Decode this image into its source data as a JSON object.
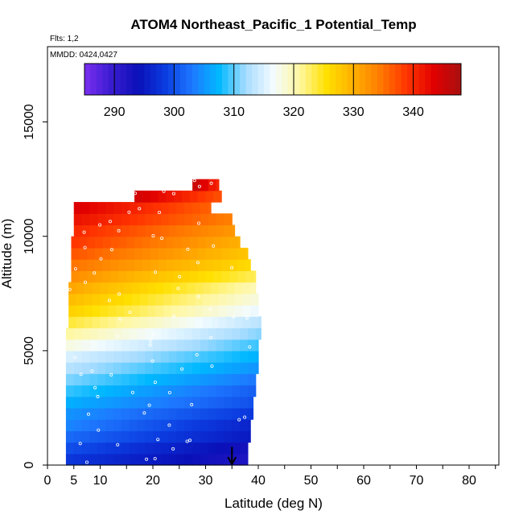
{
  "chart_data": {
    "type": "heatmap",
    "title": "ATOM4 Northeast_Pacific_1 Potential_Temp",
    "flights_label": "Flts: 1,2",
    "dates_label": "MMDD: 0424,0427",
    "xlabel": "Latitude (deg N)",
    "ylabel": "Altitude (m)",
    "xlim": [
      0,
      85
    ],
    "ylim": [
      0,
      18000
    ],
    "x_ticks": [
      0,
      5,
      10,
      20,
      30,
      40,
      50,
      60,
      70,
      80
    ],
    "y_ticks": [
      0,
      5000,
      10000,
      15000
    ],
    "colorbar": {
      "range": [
        285,
        348
      ],
      "ticks": [
        290,
        300,
        310,
        320,
        330,
        340
      ],
      "position": "top-inside",
      "colors": [
        "#7a2ff0",
        "#3a1cd0",
        "#0a10b8",
        "#0b3ce0",
        "#1e78ff",
        "#00b8ff",
        "#a8dcff",
        "#f2fbff",
        "#fff7a0",
        "#ffe000",
        "#ffb000",
        "#ff7a00",
        "#ff3300",
        "#e00000",
        "#a81010"
      ]
    },
    "colorscale_description": "potential temperature (K) by latitude and altitude bins",
    "bands": [
      {
        "alt": [
          0,
          500
        ],
        "x": [
          3.5,
          38.0
        ],
        "t": [
          298,
          292
        ]
      },
      {
        "alt": [
          500,
          1000
        ],
        "x": [
          3.5,
          38.0
        ],
        "t": [
          300,
          293
        ]
      },
      {
        "alt": [
          1000,
          1500
        ],
        "x": [
          3.5,
          38.5
        ],
        "t": [
          302,
          295
        ]
      },
      {
        "alt": [
          1500,
          2000
        ],
        "x": [
          3.5,
          38.5
        ],
        "t": [
          304,
          296
        ]
      },
      {
        "alt": [
          2000,
          2500
        ],
        "x": [
          3.5,
          39.0
        ],
        "t": [
          305,
          298
        ]
      },
      {
        "alt": [
          2500,
          3000
        ],
        "x": [
          3.5,
          39.0
        ],
        "t": [
          307,
          300
        ]
      },
      {
        "alt": [
          3000,
          3500
        ],
        "x": [
          3.5,
          39.5
        ],
        "t": [
          309,
          301
        ]
      },
      {
        "alt": [
          3500,
          4000
        ],
        "x": [
          3.5,
          39.5
        ],
        "t": [
          311,
          303
        ]
      },
      {
        "alt": [
          4000,
          4500
        ],
        "x": [
          3.5,
          40.0
        ],
        "t": [
          313,
          305
        ]
      },
      {
        "alt": [
          4500,
          5000
        ],
        "x": [
          3.5,
          40.0
        ],
        "t": [
          315,
          307
        ]
      },
      {
        "alt": [
          5000,
          5500
        ],
        "x": [
          3.5,
          40.0
        ],
        "t": [
          318,
          309
        ]
      },
      {
        "alt": [
          5500,
          6000
        ],
        "x": [
          3.5,
          40.5
        ],
        "t": [
          321,
          311
        ]
      },
      {
        "alt": [
          6000,
          6500
        ],
        "x": [
          4.0,
          40.5
        ],
        "t": [
          324,
          313
        ]
      },
      {
        "alt": [
          6500,
          7000
        ],
        "x": [
          4.0,
          40.0
        ],
        "t": [
          327,
          316
        ]
      },
      {
        "alt": [
          7000,
          7500
        ],
        "x": [
          4.0,
          40.0
        ],
        "t": [
          329,
          318
        ]
      },
      {
        "alt": [
          7500,
          8000
        ],
        "x": [
          4.0,
          39.5
        ],
        "t": [
          331,
          320
        ]
      },
      {
        "alt": [
          8000,
          8500
        ],
        "x": [
          4.5,
          39.5
        ],
        "t": [
          333,
          323
        ]
      },
      {
        "alt": [
          8500,
          9000
        ],
        "x": [
          4.5,
          38.5
        ],
        "t": [
          335,
          326
        ]
      },
      {
        "alt": [
          9000,
          9500
        ],
        "x": [
          4.5,
          38.0
        ],
        "t": [
          337,
          328
        ]
      },
      {
        "alt": [
          9500,
          10000
        ],
        "x": [
          4.5,
          36.5
        ],
        "t": [
          339,
          330
        ]
      },
      {
        "alt": [
          10000,
          10500
        ],
        "x": [
          5.0,
          35.5
        ],
        "t": [
          340,
          332
        ]
      },
      {
        "alt": [
          10500,
          11000
        ],
        "x": [
          5.0,
          35.0
        ],
        "t": [
          342,
          334
        ]
      },
      {
        "alt": [
          11000,
          11500
        ],
        "x": [
          5.0,
          31.0
        ],
        "t": [
          344,
          336
        ]
      },
      {
        "alt": [
          11500,
          12000
        ],
        "x": [
          16.5,
          33.0
        ],
        "t": [
          345,
          337
        ]
      },
      {
        "alt": [
          12000,
          12500
        ],
        "x": [
          27.5,
          32.5
        ],
        "t": [
          346,
          340
        ]
      }
    ],
    "marker": {
      "lat": 35,
      "alt_top": 800
    }
  }
}
